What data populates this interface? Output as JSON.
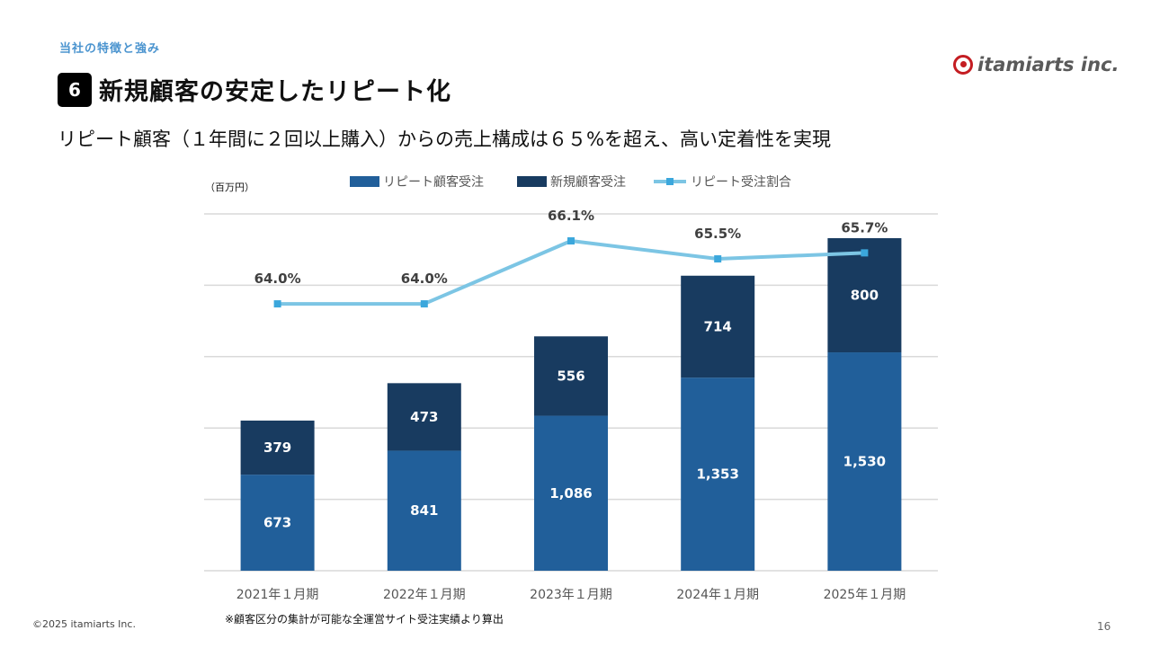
{
  "header": {
    "section_label": "当社の特徴と強み",
    "badge_number": "6",
    "title": "新規顧客の安定したリピート化",
    "subtitle": "リピート顧客（１年間に２回以上購入）からの売上構成は６５%を超え、高い定着性を実現",
    "logo_text": "itamiarts inc."
  },
  "footer": {
    "copyright": "©2025 itamiarts Inc.",
    "page_number": "16",
    "note": "※顧客区分の集計が可能な全運営サイト受注実績より算出"
  },
  "colors": {
    "repeat": "#215f9a",
    "new": "#183b60",
    "ratio_line": "#7cc5e4",
    "ratio_marker": "#3ba7dc",
    "grid": "#d9d9d9"
  },
  "chart_data": {
    "type": "bar",
    "stacked": true,
    "unit_label": "（百万円）",
    "categories": [
      "2021年１月期",
      "2022年１月期",
      "2023年１月期",
      "2024年１月期",
      "2025年１月期"
    ],
    "series": [
      {
        "name": "リピート顧客受注",
        "type": "bar",
        "values": [
          673,
          841,
          1086,
          1353,
          1530
        ],
        "labels": [
          "673",
          "841",
          "1,086",
          "1,353",
          "1,530"
        ]
      },
      {
        "name": "新規顧客受注",
        "type": "bar",
        "values": [
          379,
          473,
          556,
          714,
          800
        ],
        "labels": [
          "379",
          "473",
          "556",
          "714",
          "800"
        ]
      },
      {
        "name": "リピート受注割合",
        "type": "line",
        "axis": "secondary",
        "values": [
          64.0,
          64.0,
          66.1,
          65.5,
          65.7
        ],
        "labels": [
          "64.0%",
          "64.0%",
          "66.1%",
          "65.5%",
          "65.7%"
        ]
      }
    ],
    "ylim": [
      0,
      2500
    ],
    "yticks": [
      0,
      500,
      1000,
      1500,
      2000,
      2500
    ],
    "y2lim": [
      55.1,
      67.0
    ],
    "grid": true,
    "axis_tick_labels_visible": false,
    "legend_position": "top"
  }
}
